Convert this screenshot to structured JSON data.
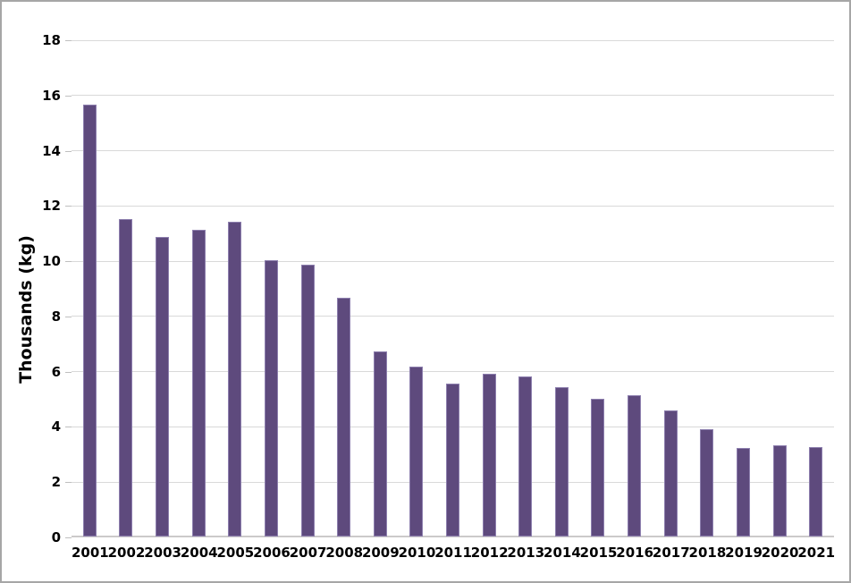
{
  "chart_data": {
    "type": "bar",
    "title": "",
    "xlabel": "",
    "ylabel": "Thousands (kg)",
    "categories": [
      "2001",
      "2002",
      "2003",
      "2004",
      "2005",
      "2006",
      "2007",
      "2008",
      "2009",
      "2010",
      "2011",
      "2012",
      "2013",
      "2014",
      "2015",
      "2016",
      "2017",
      "2018",
      "2019",
      "2020",
      "2021"
    ],
    "values": [
      15.65,
      11.5,
      10.85,
      11.1,
      11.4,
      10.0,
      9.85,
      8.65,
      6.7,
      6.15,
      5.55,
      5.9,
      5.8,
      5.4,
      5.0,
      5.1,
      4.55,
      3.9,
      3.2,
      3.3,
      3.25
    ],
    "ylim": [
      0,
      18
    ],
    "yticks": [
      0,
      2,
      4,
      6,
      8,
      10,
      12,
      14,
      16,
      18
    ],
    "grid": true,
    "legend": "none",
    "colors": {
      "bar_fill": "#5e4a7d",
      "bar_edge": "#8d7fae",
      "gridline": "#d9d9d9",
      "axis_line": "#cccaca",
      "tick_mark": "#bfbfbf",
      "text": "#000000",
      "frame_border": "#a6a6a6",
      "background": "#ffffff"
    }
  }
}
